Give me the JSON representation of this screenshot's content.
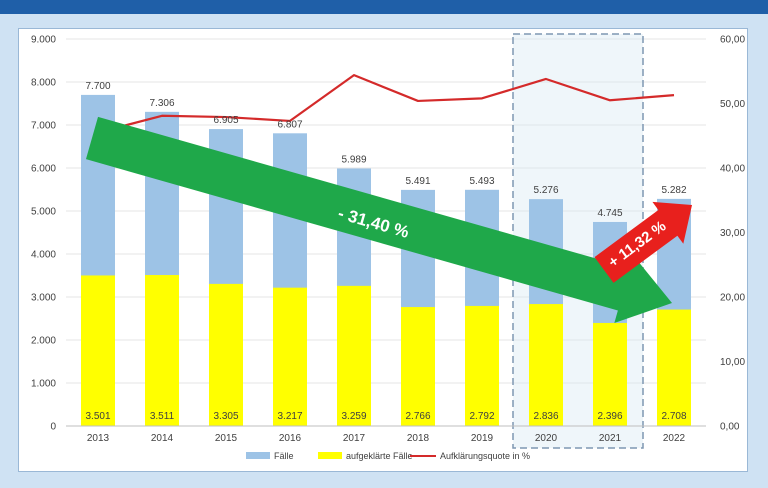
{
  "chart_data": {
    "type": "bar",
    "categories": [
      "2013",
      "2014",
      "2015",
      "2016",
      "2017",
      "2018",
      "2019",
      "2020",
      "2021",
      "2022"
    ],
    "series": [
      {
        "name": "Fälle",
        "type": "bar",
        "values": [
          7700,
          7306,
          6905,
          6807,
          5989,
          5491,
          5493,
          5276,
          4745,
          5282
        ],
        "labels": [
          "7.700",
          "7.306",
          "6.905",
          "6.807",
          "5.989",
          "5.491",
          "5.493",
          "5.276",
          "4.745",
          "5.282"
        ],
        "color": "#9dc3e6"
      },
      {
        "name": "aufgeklärte Fälle",
        "type": "bar",
        "values": [
          3501,
          3511,
          3305,
          3217,
          3259,
          2766,
          2792,
          2836,
          2396,
          2708
        ],
        "labels": [
          "3.501",
          "3.511",
          "3.305",
          "3.217",
          "3.259",
          "2.766",
          "2.792",
          "2.836",
          "2.396",
          "2.708"
        ],
        "color": "#ffff00"
      },
      {
        "name": "Aufklärungsquote in %",
        "type": "line",
        "axis": "right",
        "values": [
          45.5,
          48.1,
          47.9,
          47.3,
          54.4,
          50.4,
          50.8,
          53.8,
          50.5,
          51.3
        ],
        "color": "#d42a2a"
      }
    ],
    "ylim": [
      0,
      9000
    ],
    "y_ticks": [
      "0",
      "1.000",
      "2.000",
      "3.000",
      "4.000",
      "5.000",
      "6.000",
      "7.000",
      "8.000",
      "9.000"
    ],
    "y2lim": [
      0,
      60
    ],
    "y2_ticks": [
      "0,00",
      "10,00",
      "20,00",
      "30,00",
      "40,00",
      "50,00",
      "60,00"
    ],
    "legend_position": "bottom",
    "annotations": {
      "decrease": "- 31,40 %",
      "increase": "+ 11,32 %",
      "highlight_categories": [
        "2020",
        "2021"
      ]
    }
  },
  "colors": {
    "header": "#1f5fa8",
    "background": "#cfe2f3",
    "green_arrow": "#1fa84a",
    "red_arrow": "#e8201d",
    "highlight_border": "#7f97b2"
  }
}
